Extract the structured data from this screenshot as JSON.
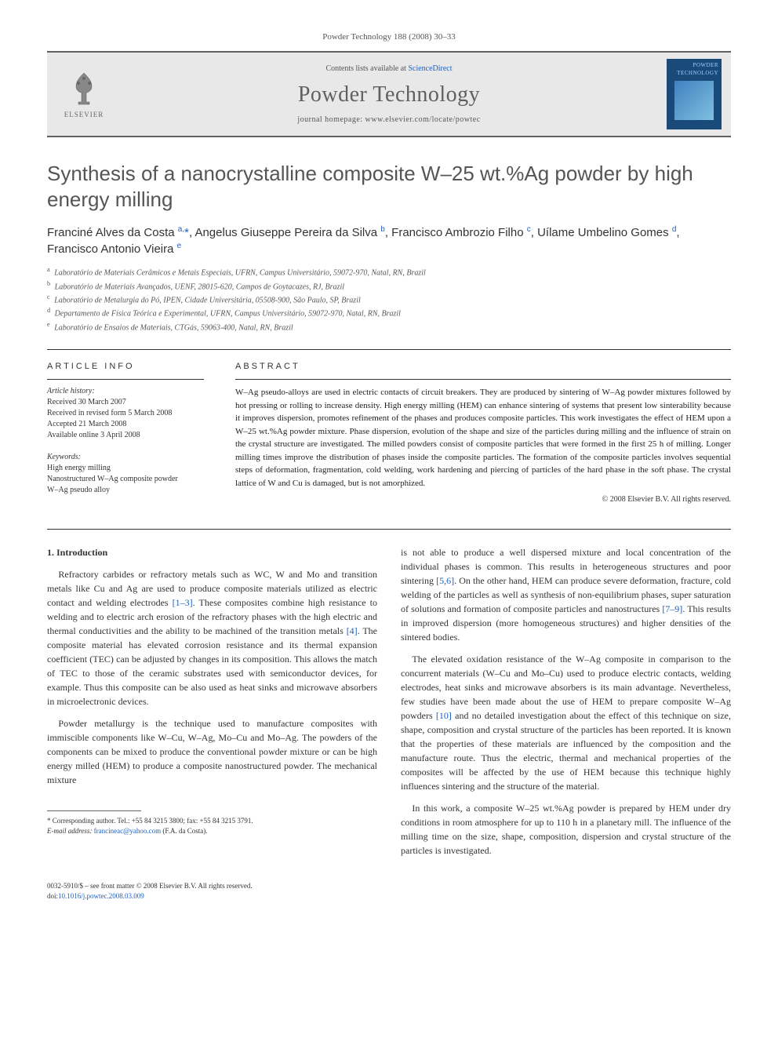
{
  "journal_ref": "Powder Technology 188 (2008) 30–33",
  "banner": {
    "publisher": "ELSEVIER",
    "contents_prefix": "Contents lists available at ",
    "contents_link": "ScienceDirect",
    "journal_name": "Powder Technology",
    "homepage_prefix": "journal homepage: ",
    "homepage_url": "www.elsevier.com/locate/powtec",
    "cover_top": "POWDER",
    "cover_sub": "TECHNOLOGY"
  },
  "article": {
    "title": "Synthesis of a nanocrystalline composite W–25 wt.%Ag powder by high energy milling",
    "authors_html": "Franciné Alves da Costa <sup>a,</sup><span class='corr-star'>*</span>, Angelus Giuseppe Pereira da Silva <sup>b</sup>, Francisco Ambrozio Filho <sup>c</sup>, Uílame Umbelino Gomes <sup>d</sup>, Francisco Antonio Vieira <sup>e</sup>",
    "affiliations": [
      {
        "sup": "a",
        "text": "Laboratório de Materiais Cerâmicos e Metais Especiais, UFRN, Campus Universitário, 59072-970, Natal, RN, Brazil"
      },
      {
        "sup": "b",
        "text": "Laboratório de Materiais Avançados, UENF, 28015-620, Campos de Goytacazes, RJ, Brazil"
      },
      {
        "sup": "c",
        "text": "Laboratório de Metalurgia do Pó, IPEN, Cidade Universitária, 05508-900, São Paulo, SP, Brazil"
      },
      {
        "sup": "d",
        "text": "Departamento de Física Teórica e Experimental, UFRN, Campus Universitário, 59072-970, Natal, RN, Brazil"
      },
      {
        "sup": "e",
        "text": "Laboratório de Ensaios de Materiais, CTGás, 59063-400, Natal, RN, Brazil"
      }
    ]
  },
  "info": {
    "heading": "ARTICLE INFO",
    "history_label": "Article history:",
    "history": [
      "Received 30 March 2007",
      "Received in revised form 5 March 2008",
      "Accepted 21 March 2008",
      "Available online 3 April 2008"
    ],
    "keywords_label": "Keywords:",
    "keywords": [
      "High energy milling",
      "Nanostructured W–Ag composite powder",
      "W–Ag pseudo alloy"
    ]
  },
  "abstract": {
    "heading": "ABSTRACT",
    "text": "W–Ag pseudo-alloys are used in electric contacts of circuit breakers. They are produced by sintering of W–Ag powder mixtures followed by hot pressing or rolling to increase density. High energy milling (HEM) can enhance sintering of systems that present low sinterability because it improves dispersion, promotes refinement of the phases and produces composite particles. This work investigates the effect of HEM upon a W–25 wt.%Ag powder mixture. Phase dispersion, evolution of the shape and size of the particles during milling and the influence of strain on the crystal structure are investigated. The milled powders consist of composite particles that were formed in the first 25 h of milling. Longer milling times improve the distribution of phases inside the composite particles. The formation of the composite particles involves sequential steps of deformation, fragmentation, cold welding, work hardening and piercing of particles of the hard phase in the soft phase. The crystal lattice of W and Cu is damaged, but is not amorphized.",
    "copyright": "© 2008 Elsevier B.V. All rights reserved."
  },
  "body": {
    "section_heading": "1. Introduction",
    "col1": [
      "Refractory carbides or refractory metals such as WC, W and Mo and transition metals like Cu and Ag are used to produce composite materials utilized as electric contact and welding electrodes <a class='ref-link' href='#'>[1–3]</a>. These composites combine high resistance to welding and to electric arch erosion of the refractory phases with the high electric and thermal conductivities and the ability to be machined of the transition metals <a class='ref-link' href='#'>[4]</a>. The composite material has elevated corrosion resistance and its thermal expansion coefficient (TEC) can be adjusted by changes in its composition. This allows the match of TEC to those of the ceramic substrates used with semiconductor devices, for example. Thus this composite can be also used as heat sinks and microwave absorbers in microelectronic devices.",
      "Powder metallurgy is the technique used to manufacture composites with immiscible components like W–Cu, W–Ag, Mo–Cu and Mo–Ag. The powders of the components can be mixed to produce the conventional powder mixture or can be high energy milled (HEM) to produce a composite nanostructured powder. The mechanical mixture"
    ],
    "col2": [
      "is not able to produce a well dispersed mixture and local concentration of the individual phases is common. This results in heterogeneous structures and poor sintering <a class='ref-link' href='#'>[5,6]</a>. On the other hand, HEM can produce severe deformation, fracture, cold welding of the particles as well as synthesis of non-equilibrium phases, super saturation of solutions and formation of composite particles and nanostructures <a class='ref-link' href='#'>[7–9]</a>. This results in improved dispersion (more homogeneous structures) and higher densities of the sintered bodies.",
      "The elevated oxidation resistance of the W–Ag composite in comparison to the concurrent materials (W–Cu and Mo–Cu) used to produce electric contacts, welding electrodes, heat sinks and microwave absorbers is its main advantage. Nevertheless, few studies have been made about the use of HEM to prepare composite W–Ag powders <a class='ref-link' href='#'>[10]</a> and no detailed investigation about the effect of this technique on size, shape, composition and crystal structure of the particles has been reported. It is known that the properties of these materials are influenced by the composition and the manufacture route. Thus the electric, thermal and mechanical properties of the composites will be affected by the use of HEM because this technique highly influences sintering and the structure of the material.",
      "In this work, a composite W–25 wt.%Ag powder is prepared by HEM under dry conditions in room atmosphere for up to 110 h in a planetary mill. The influence of the milling time on the size, shape, composition, dispersion and crystal structure of the particles is investigated."
    ]
  },
  "footnote": {
    "corr_label": "* Corresponding author. Tel.: +55 84 3215 3800; fax: +55 84 3215 3791.",
    "email_label": "E-mail address:",
    "email": "francineac@yahoo.com",
    "email_name": "(F.A. da Costa)."
  },
  "footer": {
    "line1": "0032-5910/$ – see front matter © 2008 Elsevier B.V. All rights reserved.",
    "doi_prefix": "doi:",
    "doi": "10.1016/j.powtec.2008.03.009"
  },
  "colors": {
    "link": "#2060c0",
    "rule": "#606060",
    "banner_bg": "#e8e8e8",
    "cover_bg": "#1a4a7a"
  }
}
